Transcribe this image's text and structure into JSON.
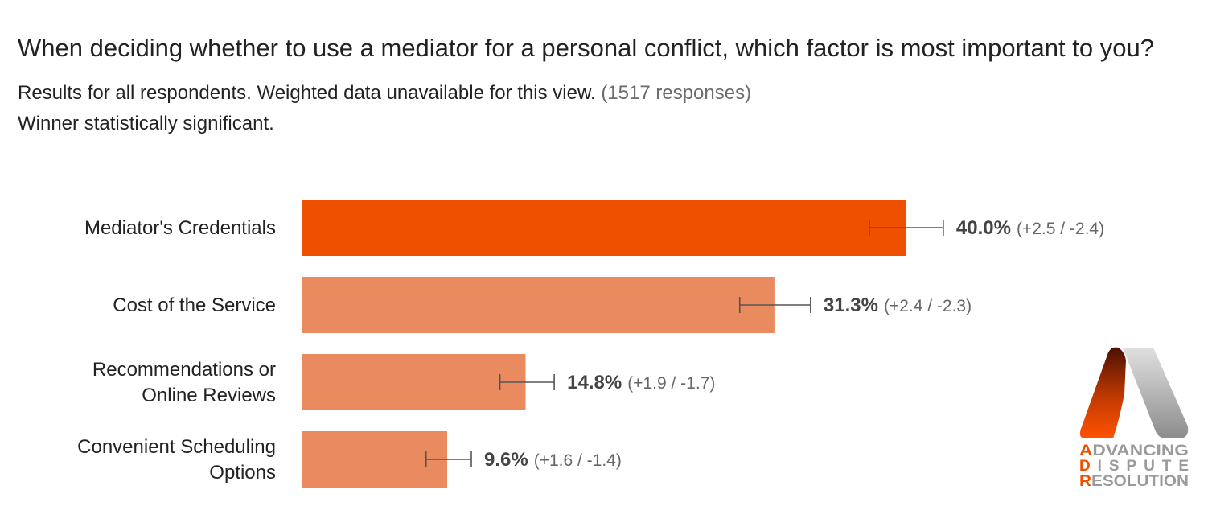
{
  "header": {
    "title": "When deciding whether to use a mediator for a personal conflict, which factor is most important to you?",
    "subtitle": "Results for all respondents. Weighted data unavailable for this view.",
    "responses": "(1517 responses)",
    "note": "Winner statistically significant."
  },
  "chart_data": {
    "type": "bar",
    "orientation": "horizontal",
    "categories": [
      [
        "Mediator's Credentials"
      ],
      [
        "Cost of the Service"
      ],
      [
        "Recommendations or",
        "Online Reviews"
      ],
      [
        "Convenient Scheduling",
        "Options"
      ]
    ],
    "values": [
      40.0,
      31.3,
      14.8,
      9.6
    ],
    "value_labels": [
      "40.0%",
      "31.3%",
      "14.8%",
      "9.6%"
    ],
    "error_plus": [
      2.5,
      2.4,
      1.9,
      1.6
    ],
    "error_minus": [
      2.4,
      2.3,
      1.7,
      1.4
    ],
    "error_labels": [
      "(+2.5 / -2.4)",
      "(+2.4 / -2.3)",
      "(+1.9 / -1.7)",
      "(+1.6 / -1.4)"
    ],
    "highlight_index": 0,
    "xlim": [
      0,
      100
    ],
    "grid": false,
    "colors": {
      "highlight": "#ee5000",
      "bar": "#ea8a5f",
      "error": "#555555"
    }
  },
  "logo": {
    "lines": [
      "ADVANCING",
      "DISPUTE",
      "RESOLUTION"
    ],
    "colors": {
      "accent": "#ee5000",
      "gray": "#9a9a9a",
      "dark": "#5a1405"
    }
  }
}
